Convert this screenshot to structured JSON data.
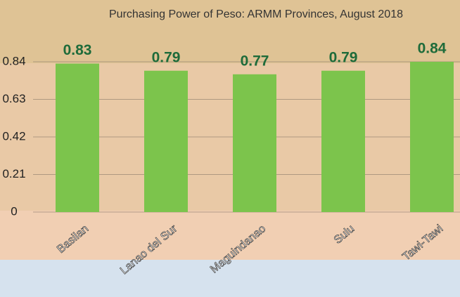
{
  "chart_data": {
    "type": "bar",
    "title": "Purchasing Power of Peso:  ARMM Provinces, August 2018",
    "categories": [
      "Basilan",
      "Lanao del Sur",
      "Maguindanao",
      "Sulu",
      "Tawi-Tawi"
    ],
    "values": [
      0.83,
      0.79,
      0.77,
      0.79,
      0.84
    ],
    "color": "#7cc44c",
    "ylim": [
      0,
      0.84
    ],
    "yticks": [
      0,
      0.21,
      0.42,
      0.63,
      0.84
    ],
    "grid": true
  }
}
